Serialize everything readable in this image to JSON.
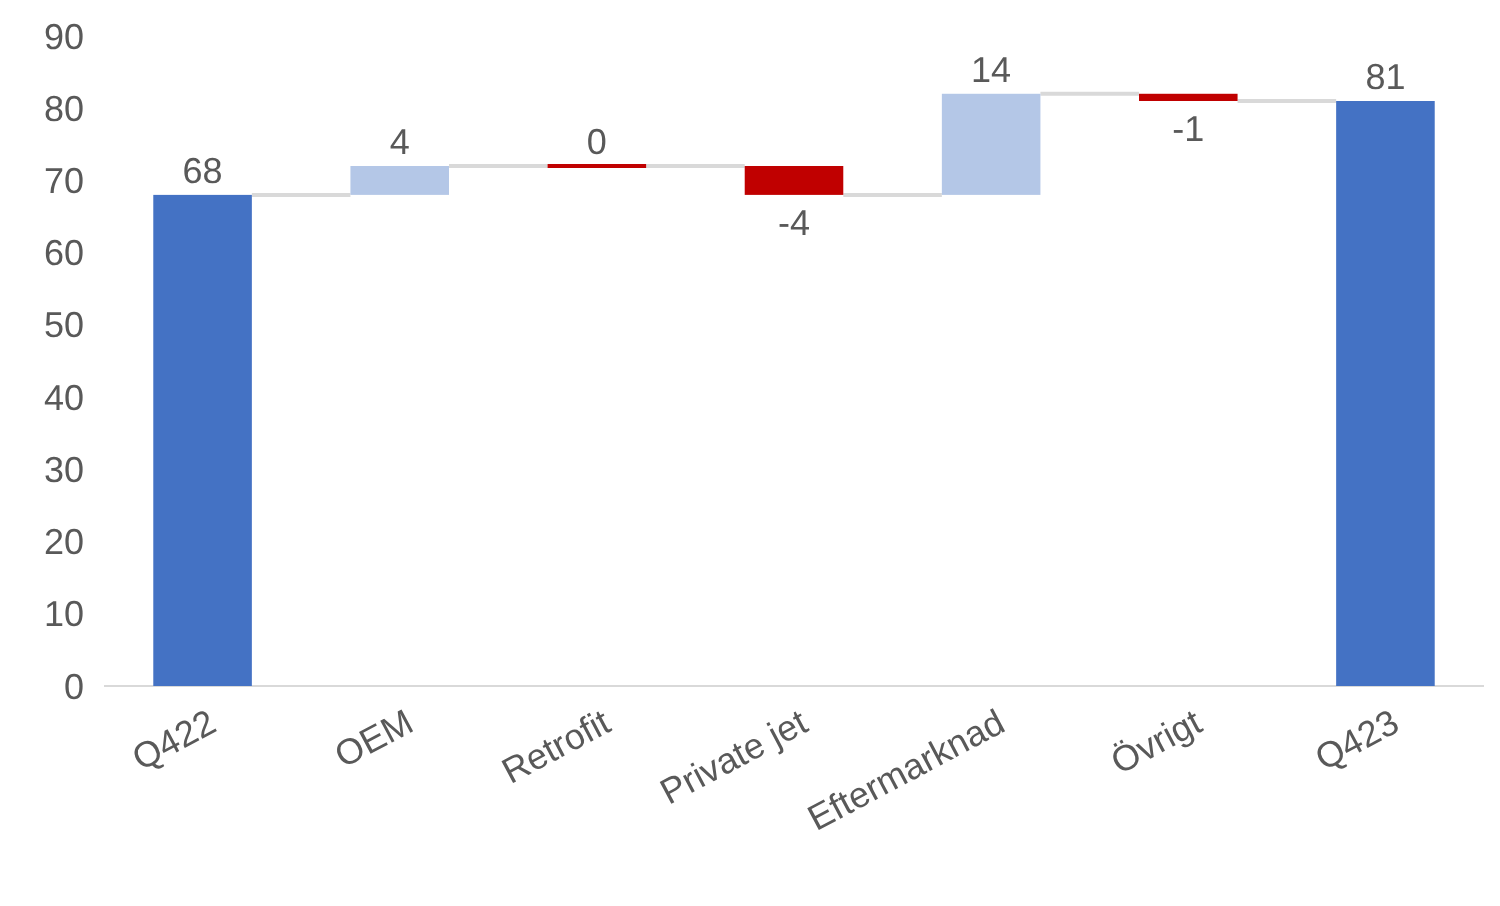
{
  "chart_data": {
    "type": "bar",
    "categories": [
      "Q422",
      "OEM",
      "Retrofit",
      "Private jet",
      "Eftermarknad",
      "Övrigt",
      "Q423"
    ],
    "values": [
      68,
      4,
      0,
      -4,
      14,
      -1,
      81
    ],
    "base": [
      0,
      68,
      72,
      72,
      68,
      82,
      0
    ],
    "colors": [
      "#4472c4",
      "#b4c7e7",
      "#c00000",
      "#c00000",
      "#b4c7e7",
      "#c00000",
      "#4472c4"
    ],
    "ylim": [
      0,
      90
    ],
    "yticks": [
      0,
      10,
      20,
      30,
      40,
      50,
      60,
      70,
      80,
      90
    ],
    "data_labels": true,
    "grid": false
  }
}
